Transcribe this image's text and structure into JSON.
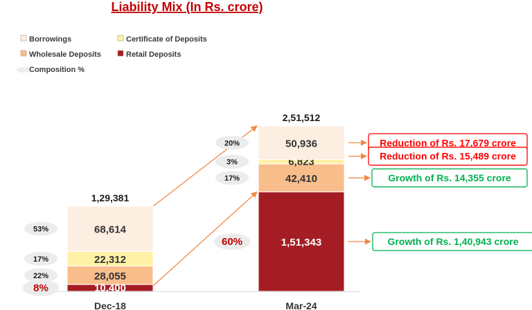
{
  "chart_data": {
    "type": "stacked-bar",
    "title": "Liability Mix (In Rs. crore)",
    "categories": [
      "Dec-18",
      "Mar-24"
    ],
    "series": [
      {
        "name": "Retail Deposits",
        "color": "#a51d24",
        "labels": [
          "10,400",
          "1,51,343"
        ],
        "values": [
          10400,
          151343
        ],
        "composition": [
          "8%",
          "60%"
        ]
      },
      {
        "name": "Wholesale Deposits",
        "color": "#f9bd8c",
        "labels": [
          "28,055",
          "42,410"
        ],
        "values": [
          28055,
          42410
        ],
        "composition": [
          "22%",
          "17%"
        ]
      },
      {
        "name": "Certificate of Deposits",
        "color": "#fff2a6",
        "labels": [
          "22,312",
          "6,823"
        ],
        "values": [
          22312,
          6823
        ],
        "composition": [
          "17%",
          "3%"
        ]
      },
      {
        "name": "Borrowings",
        "color": "#fdeee2",
        "labels": [
          "68,614",
          "50,936"
        ],
        "values": [
          68614,
          50936
        ],
        "composition": [
          "53%",
          "20%"
        ]
      }
    ],
    "totals": [
      "1,29,381",
      "2,51,512"
    ],
    "legend": [
      {
        "name": "Borrowings",
        "color": "#fdeee2"
      },
      {
        "name": "Certificate of Deposits",
        "color": "#fff2a6"
      },
      {
        "name": "Wholesale Deposits",
        "color": "#f9bd8c"
      },
      {
        "name": "Retail Deposits",
        "color": "#a51d24"
      },
      {
        "name": "Composition %",
        "color": "#eeeeee"
      }
    ],
    "annotations": [
      {
        "text": "Reduction of Rs. 17,679 crore",
        "series": "Borrowings",
        "color": "#ff0000"
      },
      {
        "text": "Reduction of Rs. 15,489 crore",
        "series": "Certificate of Deposits",
        "color": "#ff0000"
      },
      {
        "text": "Growth of Rs. 14,355 crore",
        "series": "Wholesale Deposits",
        "color": "#00b050"
      },
      {
        "text": "Growth of Rs. 1,40,943 crore",
        "series": "Retail Deposits",
        "color": "#00b050"
      }
    ],
    "colors": {
      "arrow": "#f08a45"
    }
  }
}
